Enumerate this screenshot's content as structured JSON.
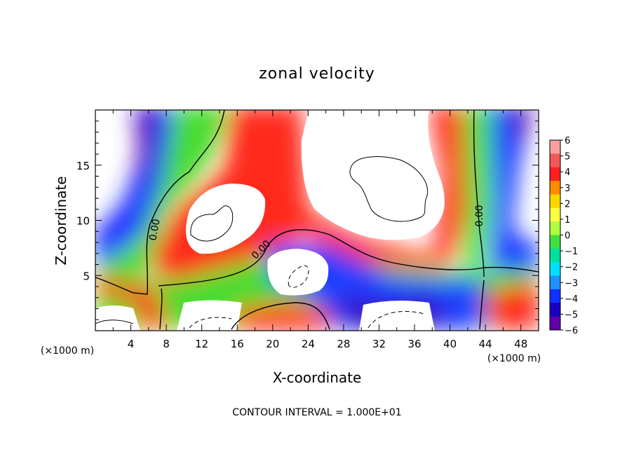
{
  "chart_data": {
    "type": "heatmap",
    "title": "zonal velocity",
    "xlabel": "X-coordinate",
    "ylabel": "Z-coordinate",
    "x_unit_label": "(×1000 m)",
    "x_unit_label_right": "(×1000 m)",
    "footer": "CONTOUR INTERVAL = 1.000E+01",
    "xlim": [
      0,
      50
    ],
    "ylim": [
      0,
      20
    ],
    "x_ticks": [
      4,
      8,
      12,
      16,
      20,
      24,
      28,
      32,
      36,
      40,
      44,
      48
    ],
    "x_tick_labels": [
      "4",
      "8",
      "12",
      "16",
      "20",
      "24",
      "28",
      "32",
      "36",
      "40",
      "44",
      "48"
    ],
    "y_ticks": [
      5,
      10,
      15
    ],
    "y_tick_labels": [
      "5",
      "10",
      "15"
    ],
    "contour_label": "0.00",
    "contour_labels": [
      {
        "x": 6.6,
        "z": 9.3,
        "text": "0.00"
      },
      {
        "x": 18.2,
        "z": 7.0,
        "text": "0.00"
      },
      {
        "x": 43.4,
        "z": 10.5,
        "text": "0.00"
      }
    ],
    "colorbar": {
      "levels": [
        6,
        5,
        4,
        3,
        2,
        1,
        0,
        -1,
        -2,
        -3,
        -4,
        -5,
        -6
      ],
      "labels": [
        "6",
        "5",
        "4",
        "3",
        "2",
        "1",
        "0",
        "−1",
        "−2",
        "−3",
        "−4",
        "−5",
        "−6"
      ],
      "colors": [
        "#f8a0a0",
        "#f05858",
        "#ff2020",
        "#ff8c00",
        "#ffd700",
        "#ffff40",
        "#b0ff40",
        "#40e040",
        "#00e0a0",
        "#00e0ff",
        "#1e90ff",
        "#1030ff",
        "#1800c0",
        "#6000a8"
      ]
    },
    "features": [
      {
        "kind": "positive-core",
        "x": 18.3,
        "z": 11.7,
        "note": "white region enclosed by red"
      },
      {
        "kind": "positive-core",
        "x": 36.7,
        "z": 15.5,
        "note": "white region enclosed by red"
      },
      {
        "kind": "negative-jet",
        "x": 6.5,
        "z": 14.0,
        "note": "purple/blue column"
      },
      {
        "kind": "negative-jet",
        "x": 47.8,
        "z": 14.0,
        "note": "purple/blue column"
      },
      {
        "kind": "negative-pool",
        "x": 31.0,
        "z": 3.5,
        "note": "blue/purple lower pool"
      },
      {
        "kind": "positive-jet",
        "x": 22.0,
        "z": 1.5,
        "note": "red near bottom"
      }
    ]
  }
}
